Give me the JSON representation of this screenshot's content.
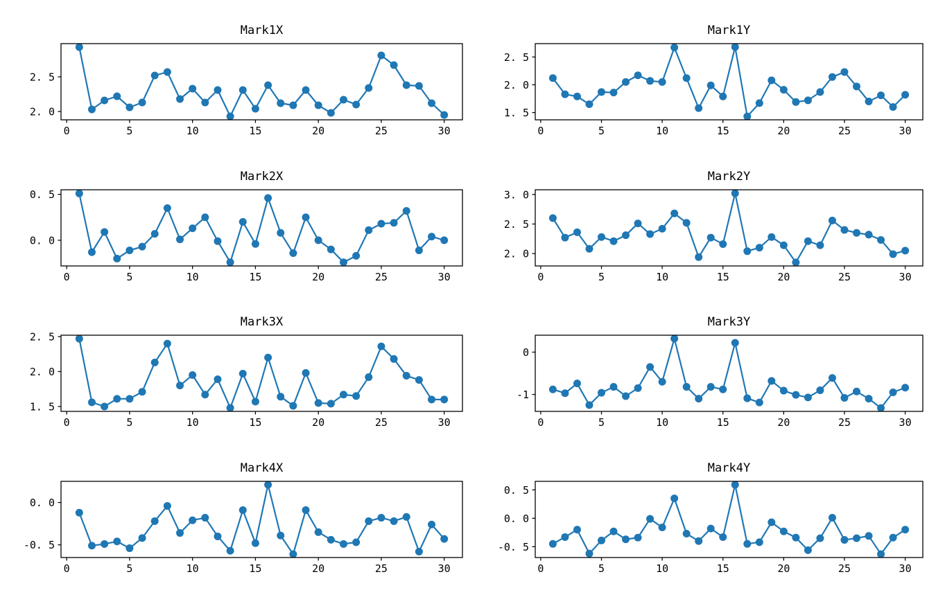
{
  "figure": {
    "background": "#ffffff",
    "line_color": "#1f77b4",
    "marker_color": "#1f77b4",
    "axis_color": "#000000",
    "tick_label_color": "#000000"
  },
  "chart_data": [
    {
      "type": "line",
      "title": "Mark1X",
      "marker": "circle",
      "x": [
        1,
        2,
        3,
        4,
        5,
        6,
        7,
        8,
        9,
        10,
        11,
        12,
        13,
        14,
        15,
        16,
        17,
        18,
        19,
        20,
        21,
        22,
        23,
        24,
        25,
        26,
        27,
        28,
        29,
        30
      ],
      "values": [
        2.93,
        2.03,
        2.16,
        2.22,
        2.06,
        2.13,
        2.52,
        2.57,
        2.18,
        2.33,
        2.13,
        2.31,
        1.93,
        2.31,
        2.04,
        2.38,
        2.12,
        2.09,
        2.31,
        2.09,
        1.98,
        2.17,
        2.1,
        2.34,
        2.81,
        2.67,
        2.38,
        2.37,
        2.12,
        1.95
      ],
      "xlim": [
        -0.45,
        31.45
      ],
      "ylim": [
        1.88,
        2.98
      ],
      "xticks": [
        0,
        5,
        10,
        15,
        20,
        25,
        30
      ],
      "xtick_labels": [
        "0",
        "5",
        "10",
        "15",
        "20",
        "25",
        "30"
      ],
      "yticks": [
        2.0,
        2.5
      ],
      "ytick_labels": [
        "2. 0",
        "2. 5"
      ]
    },
    {
      "type": "line",
      "title": "Mark1Y",
      "marker": "circle",
      "x": [
        1,
        2,
        3,
        4,
        5,
        6,
        7,
        8,
        9,
        10,
        11,
        12,
        13,
        14,
        15,
        16,
        17,
        18,
        19,
        20,
        21,
        22,
        23,
        24,
        25,
        26,
        27,
        28,
        29,
        30
      ],
      "values": [
        2.12,
        1.83,
        1.79,
        1.65,
        1.87,
        1.86,
        2.05,
        2.17,
        2.07,
        2.05,
        2.67,
        2.12,
        1.58,
        1.99,
        1.79,
        2.68,
        1.43,
        1.67,
        2.08,
        1.91,
        1.69,
        1.72,
        1.87,
        2.14,
        2.23,
        1.97,
        1.7,
        1.81,
        1.6,
        1.82
      ],
      "xlim": [
        -0.45,
        31.45
      ],
      "ylim": [
        1.37,
        2.74
      ],
      "xticks": [
        0,
        5,
        10,
        15,
        20,
        25,
        30
      ],
      "xtick_labels": [
        "0",
        "5",
        "10",
        "15",
        "20",
        "25",
        "30"
      ],
      "yticks": [
        1.5,
        2.0,
        2.5
      ],
      "ytick_labels": [
        "1. 5",
        "2. 0",
        "2. 5"
      ]
    },
    {
      "type": "line",
      "title": "Mark2X",
      "marker": "circle",
      "x": [
        1,
        2,
        3,
        4,
        5,
        6,
        7,
        8,
        9,
        10,
        11,
        12,
        13,
        14,
        15,
        16,
        17,
        18,
        19,
        20,
        21,
        22,
        23,
        24,
        25,
        26,
        27,
        28,
        29,
        30
      ],
      "values": [
        0.51,
        -0.13,
        0.09,
        -0.2,
        -0.11,
        -0.07,
        0.07,
        0.35,
        0.01,
        0.13,
        0.25,
        -0.01,
        -0.24,
        0.2,
        -0.04,
        0.46,
        0.08,
        -0.14,
        0.25,
        0.0,
        -0.1,
        -0.24,
        -0.17,
        0.11,
        0.18,
        0.19,
        0.32,
        -0.11,
        0.04,
        0.0
      ],
      "xlim": [
        -0.45,
        31.45
      ],
      "ylim": [
        -0.28,
        0.55
      ],
      "xticks": [
        0,
        5,
        10,
        15,
        20,
        25,
        30
      ],
      "xtick_labels": [
        "0",
        "5",
        "10",
        "15",
        "20",
        "25",
        "30"
      ],
      "yticks": [
        0.0,
        0.5
      ],
      "ytick_labels": [
        "0. 0",
        "0. 5"
      ]
    },
    {
      "type": "line",
      "title": "Mark2Y",
      "marker": "circle",
      "x": [
        1,
        2,
        3,
        4,
        5,
        6,
        7,
        8,
        9,
        10,
        11,
        12,
        13,
        14,
        15,
        16,
        17,
        18,
        19,
        20,
        21,
        22,
        23,
        24,
        25,
        26,
        27,
        28,
        29,
        30
      ],
      "values": [
        2.6,
        2.27,
        2.36,
        2.08,
        2.28,
        2.21,
        2.31,
        2.51,
        2.33,
        2.42,
        2.68,
        2.52,
        1.94,
        2.27,
        2.16,
        3.02,
        2.04,
        2.1,
        2.28,
        2.14,
        1.85,
        2.21,
        2.14,
        2.56,
        2.4,
        2.35,
        2.32,
        2.23,
        1.99,
        2.05
      ],
      "xlim": [
        -0.45,
        31.45
      ],
      "ylim": [
        1.79,
        3.08
      ],
      "xticks": [
        0,
        5,
        10,
        15,
        20,
        25,
        30
      ],
      "xtick_labels": [
        "0",
        "5",
        "10",
        "15",
        "20",
        "25",
        "30"
      ],
      "yticks": [
        2.0,
        2.5,
        3.0
      ],
      "ytick_labels": [
        "2. 0",
        "2. 5",
        "3. 0"
      ]
    },
    {
      "type": "line",
      "title": "Mark3X",
      "marker": "circle",
      "x": [
        1,
        2,
        3,
        4,
        5,
        6,
        7,
        8,
        9,
        10,
        11,
        12,
        13,
        14,
        15,
        16,
        17,
        18,
        19,
        20,
        21,
        22,
        23,
        24,
        25,
        26,
        27,
        28,
        29,
        30
      ],
      "values": [
        2.47,
        1.56,
        1.5,
        1.61,
        1.61,
        1.71,
        2.13,
        2.4,
        1.8,
        1.95,
        1.67,
        1.89,
        1.48,
        1.97,
        1.57,
        2.2,
        1.64,
        1.51,
        1.98,
        1.55,
        1.54,
        1.67,
        1.65,
        1.92,
        2.36,
        2.18,
        1.94,
        1.88,
        1.6,
        1.6
      ],
      "xlim": [
        -0.45,
        31.45
      ],
      "ylim": [
        1.43,
        2.52
      ],
      "xticks": [
        0,
        5,
        10,
        15,
        20,
        25,
        30
      ],
      "xtick_labels": [
        "0",
        "5",
        "10",
        "15",
        "20",
        "25",
        "30"
      ],
      "yticks": [
        1.5,
        2.0,
        2.5
      ],
      "ytick_labels": [
        "1. 5",
        "2. 0",
        "2. 5"
      ]
    },
    {
      "type": "line",
      "title": "Mark3Y",
      "marker": "circle",
      "x": [
        1,
        2,
        3,
        4,
        5,
        6,
        7,
        8,
        9,
        10,
        11,
        12,
        13,
        14,
        15,
        16,
        17,
        18,
        19,
        20,
        21,
        22,
        23,
        24,
        25,
        26,
        27,
        28,
        29,
        30
      ],
      "values": [
        -0.88,
        -0.97,
        -0.74,
        -1.25,
        -0.96,
        -0.82,
        -1.04,
        -0.85,
        -0.35,
        -0.7,
        0.32,
        -0.82,
        -1.1,
        -0.82,
        -0.88,
        0.22,
        -1.09,
        -1.19,
        -0.68,
        -0.91,
        -1.01,
        -1.07,
        -0.9,
        -0.61,
        -1.08,
        -0.93,
        -1.1,
        -1.32,
        -0.95,
        -0.84
      ],
      "xlim": [
        -0.45,
        31.45
      ],
      "ylim": [
        -1.4,
        0.4
      ],
      "xticks": [
        0,
        5,
        10,
        15,
        20,
        25,
        30
      ],
      "xtick_labels": [
        "0",
        "5",
        "10",
        "15",
        "20",
        "25",
        "30"
      ],
      "yticks": [
        -1,
        0
      ],
      "ytick_labels": [
        "-1",
        "0"
      ]
    },
    {
      "type": "line",
      "title": "Mark4X",
      "marker": "circle",
      "x": [
        1,
        2,
        3,
        4,
        5,
        6,
        7,
        8,
        9,
        10,
        11,
        12,
        13,
        14,
        15,
        16,
        17,
        18,
        19,
        20,
        21,
        22,
        23,
        24,
        25,
        26,
        27,
        28,
        29,
        30
      ],
      "values": [
        -0.12,
        -0.51,
        -0.49,
        -0.46,
        -0.54,
        -0.42,
        -0.22,
        -0.04,
        -0.36,
        -0.21,
        -0.18,
        -0.4,
        -0.57,
        -0.09,
        -0.48,
        0.21,
        -0.39,
        -0.61,
        -0.09,
        -0.35,
        -0.44,
        -0.49,
        -0.47,
        -0.22,
        -0.18,
        -0.22,
        -0.17,
        -0.58,
        -0.26,
        -0.43
      ],
      "xlim": [
        -0.45,
        31.45
      ],
      "ylim": [
        -0.65,
        0.25
      ],
      "xticks": [
        0,
        5,
        10,
        15,
        20,
        25,
        30
      ],
      "xtick_labels": [
        "0",
        "5",
        "10",
        "15",
        "20",
        "25",
        "30"
      ],
      "yticks": [
        -0.5,
        0.0
      ],
      "ytick_labels": [
        "-0. 5",
        "0. 0"
      ]
    },
    {
      "type": "line",
      "title": "Mark4Y",
      "marker": "circle",
      "x": [
        1,
        2,
        3,
        4,
        5,
        6,
        7,
        8,
        9,
        10,
        11,
        12,
        13,
        14,
        15,
        16,
        17,
        18,
        19,
        20,
        21,
        22,
        23,
        24,
        25,
        26,
        27,
        28,
        29,
        30
      ],
      "values": [
        -0.45,
        -0.33,
        -0.2,
        -0.62,
        -0.39,
        -0.23,
        -0.37,
        -0.34,
        -0.01,
        -0.16,
        0.35,
        -0.27,
        -0.4,
        -0.18,
        -0.33,
        0.59,
        -0.45,
        -0.42,
        -0.07,
        -0.23,
        -0.34,
        -0.56,
        -0.35,
        0.01,
        -0.38,
        -0.35,
        -0.31,
        -0.63,
        -0.34,
        -0.2
      ],
      "xlim": [
        -0.45,
        31.45
      ],
      "ylim": [
        -0.69,
        0.65
      ],
      "xticks": [
        0,
        5,
        10,
        15,
        20,
        25,
        30
      ],
      "xtick_labels": [
        "0",
        "5",
        "10",
        "15",
        "20",
        "25",
        "30"
      ],
      "yticks": [
        -0.5,
        0.0,
        0.5
      ],
      "ytick_labels": [
        "-0. 5",
        "0. 0",
        "0. 5"
      ]
    }
  ]
}
